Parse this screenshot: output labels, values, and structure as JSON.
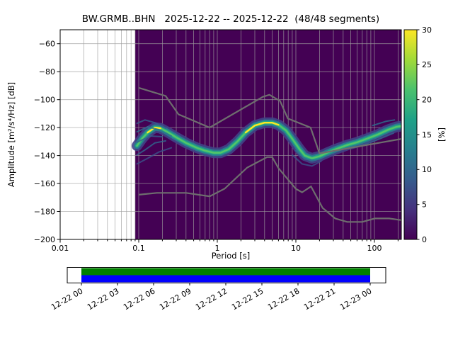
{
  "chart_data": {
    "type": "heatmap",
    "title": "BW.GRMB..BHN   2025-12-22 -- 2025-12-22  (48/48 segments)",
    "xlabel": "Period [s]",
    "ylabel": "Amplitude [m²/s⁴/Hz] [dB]",
    "x_scale": "log",
    "grid": true,
    "xlim": [
      0.01,
      220
    ],
    "ylim": [
      -200,
      -50
    ],
    "x_tick_values": [
      0.01,
      0.1,
      1,
      10,
      100
    ],
    "x_tick_labels": [
      "0.01",
      "0.1",
      "1",
      "10",
      "100"
    ],
    "y_tick_values": [
      -60,
      -80,
      -100,
      -120,
      -140,
      -160,
      -180,
      -200
    ],
    "y_tick_labels": [
      "−60",
      "−80",
      "−100",
      "−120",
      "−140",
      "−160",
      "−180",
      "−200"
    ],
    "data_min_period": 0.09,
    "data_bg": "#440154",
    "colorbar": {
      "label": "[%]",
      "min": 0,
      "max": 30,
      "tick_values": [
        0,
        5,
        10,
        15,
        20,
        25,
        30
      ],
      "tick_labels": [
        "0",
        "5",
        "10",
        "15",
        "20",
        "25",
        "30"
      ],
      "colormap": "viridis",
      "gradient_stops": [
        "#440154",
        "#46327e",
        "#365c8d",
        "#277f8e",
        "#1fa187",
        "#4ac16d",
        "#a0da39",
        "#fde725"
      ]
    },
    "psd_mode_curve": {
      "periods": [
        0.095,
        0.11,
        0.13,
        0.16,
        0.19,
        0.23,
        0.3,
        0.4,
        0.55,
        0.7,
        0.9,
        1.1,
        1.4,
        1.8,
        2.3,
        3,
        4,
        5,
        6,
        7.5,
        9,
        11,
        13,
        16,
        20,
        25,
        32,
        45,
        60,
        80,
        110,
        150,
        190,
        215
      ],
      "db": [
        -133,
        -128,
        -123.5,
        -120,
        -120.5,
        -123,
        -127,
        -131,
        -134.5,
        -136.5,
        -138,
        -138,
        -135.5,
        -130,
        -123.5,
        -118.5,
        -116.5,
        -116.5,
        -118,
        -122,
        -128,
        -135,
        -140,
        -142,
        -140.5,
        -138,
        -135.5,
        -132.5,
        -130.5,
        -128,
        -125,
        -121.5,
        -119.5,
        -119
      ]
    },
    "band_layers": [
      {
        "width": 15,
        "color": "#414487",
        "opacity": 0.9
      },
      {
        "width": 9,
        "color": "#2a788e",
        "opacity": 1
      },
      {
        "width": 5,
        "color": "#22a884",
        "opacity": 1
      },
      {
        "width": 2.4,
        "color": "#54c568",
        "opacity": 1
      }
    ],
    "bright_color": "#fde725",
    "bright_segments": [
      [
        0.125,
        0.21
      ],
      [
        1.9,
        6.2
      ]
    ],
    "strands": [
      {
        "color": "#355f8d",
        "points": [
          [
            0.095,
            -117
          ],
          [
            0.12,
            -114.5
          ],
          [
            0.16,
            -116.5
          ],
          [
            0.22,
            -120.5
          ]
        ]
      },
      {
        "color": "#2d708e",
        "points": [
          [
            0.095,
            -123
          ],
          [
            0.13,
            -119.5
          ],
          [
            0.18,
            -121.5
          ],
          [
            0.26,
            -126
          ]
        ]
      },
      {
        "color": "#355f8d",
        "points": [
          [
            0.095,
            -130.5
          ],
          [
            0.14,
            -126
          ],
          [
            0.2,
            -126.5
          ]
        ]
      },
      {
        "color": "#31688e",
        "points": [
          [
            0.095,
            -139.5
          ],
          [
            0.12,
            -136
          ],
          [
            0.16,
            -131
          ],
          [
            0.22,
            -129.5
          ]
        ]
      },
      {
        "color": "#3b528b",
        "points": [
          [
            0.095,
            -146
          ],
          [
            0.13,
            -142
          ],
          [
            0.18,
            -137.5
          ],
          [
            0.26,
            -134.5
          ]
        ]
      },
      {
        "color": "#3b528b",
        "points": [
          [
            9,
            -139.5
          ],
          [
            12,
            -146
          ],
          [
            16,
            -147.5
          ],
          [
            21,
            -144
          ]
        ]
      },
      {
        "color": "#2d708e",
        "points": [
          [
            10,
            -136.5
          ],
          [
            13,
            -142.5
          ],
          [
            17,
            -143.5
          ]
        ]
      },
      {
        "color": "#355f8d",
        "points": [
          [
            55,
            -134
          ],
          [
            90,
            -130.5
          ],
          [
            130,
            -127
          ],
          [
            175,
            -124
          ]
        ]
      },
      {
        "color": "#2d708e",
        "points": [
          [
            95,
            -118.5
          ],
          [
            140,
            -115.5
          ],
          [
            180,
            -114.5
          ]
        ]
      }
    ],
    "noise_models": {
      "color": "#6e6e6e",
      "nhnm": [
        [
          0.1,
          -91.5
        ],
        [
          0.22,
          -97.4
        ],
        [
          0.32,
          -110.5
        ],
        [
          0.8,
          -120
        ],
        [
          3.8,
          -98
        ],
        [
          4.6,
          -96.5
        ],
        [
          6.3,
          -101
        ],
        [
          7.9,
          -113.5
        ],
        [
          15.4,
          -120
        ],
        [
          20,
          -138.5
        ],
        [
          50,
          -134.5
        ],
        [
          100,
          -131.5
        ],
        [
          220,
          -128.1
        ]
      ],
      "nlnm": [
        [
          0.1,
          -168
        ],
        [
          0.17,
          -166.7
        ],
        [
          0.4,
          -166.7
        ],
        [
          0.8,
          -169.2
        ],
        [
          1.24,
          -163.7
        ],
        [
          2.4,
          -148.6
        ],
        [
          4.3,
          -141.1
        ],
        [
          5,
          -141.1
        ],
        [
          6,
          -149
        ],
        [
          10,
          -163.8
        ],
        [
          12,
          -166.3
        ],
        [
          15.6,
          -162.1
        ],
        [
          21.9,
          -177.5
        ],
        [
          31.6,
          -185
        ],
        [
          45,
          -187.5
        ],
        [
          70,
          -187.5
        ],
        [
          101,
          -185
        ],
        [
          154,
          -185
        ],
        [
          220,
          -186.2
        ]
      ]
    },
    "timeline": {
      "tick_labels": [
        "12-22 00",
        "12-22 03",
        "12-22 06",
        "12-22 09",
        "12-22 12",
        "12-22 15",
        "12-22 18",
        "12-22 21",
        "12-23 00"
      ],
      "coverage_color": "#008000",
      "data_color": "#0000ff"
    }
  }
}
